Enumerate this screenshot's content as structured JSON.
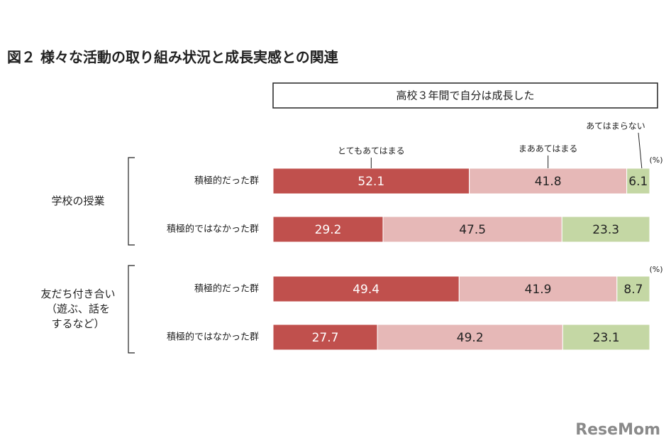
{
  "chart_data": {
    "type": "stacked-bar",
    "orientation": "horizontal",
    "title": "図２ 様々な活動の取り組み状況と成長実感との関連",
    "subtitle": "高校３年間で自分は成長した",
    "unit": "(%)",
    "groups": [
      {
        "label_lines": [
          "学校の授業"
        ]
      },
      {
        "label_lines": [
          "友だち付き合い",
          "（遊ぶ、話を",
          "するなど）"
        ]
      }
    ],
    "categories": [
      "積極的だった群",
      "積極的ではなかった群",
      "積極的だった群",
      "積極的ではなかった群"
    ],
    "series": [
      {
        "name": "とてもあてはまる",
        "color": "#c0504d",
        "label_color": "#ffffff",
        "values": [
          52.1,
          29.2,
          49.4,
          27.7
        ]
      },
      {
        "name": "まああてはまる",
        "color": "#e6b8b7",
        "label_color": "#222222",
        "values": [
          41.8,
          47.5,
          41.9,
          49.2
        ]
      },
      {
        "name": "あてはまらない",
        "color": "#c4d7a4",
        "label_color": "#222222",
        "values": [
          6.1,
          23.3,
          8.7,
          23.1
        ]
      }
    ],
    "xlim": [
      0,
      100
    ],
    "watermark": "ReseMom"
  }
}
